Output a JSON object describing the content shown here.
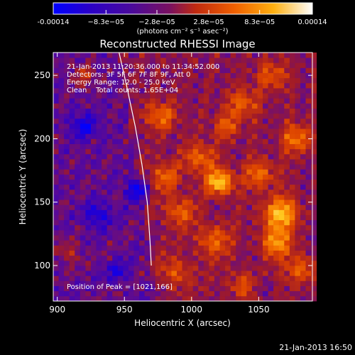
{
  "chart_data": {
    "type": "heatmap",
    "title": "Reconstructed RHESSI Image",
    "xlabel": "Heliocentric X (arcsec)",
    "ylabel": "Heliocentric Y (arcsec)",
    "xlim": [
      897,
      1090
    ],
    "ylim": [
      72,
      268
    ],
    "xticks": [
      900,
      950,
      1000,
      1050
    ],
    "yticks": [
      100,
      150,
      200,
      250
    ],
    "xtick_labels": [
      "900",
      "950",
      "1000",
      "1050"
    ],
    "ytick_labels": [
      "100",
      "150",
      "200",
      "250"
    ],
    "colorbar": {
      "range": [
        -0.00014,
        0.00014
      ],
      "tick_labels": [
        "-0.00014",
        "−8.3e−05",
        "−2.8e−05",
        "2.8e−05",
        "8.3e−05",
        "0.00014"
      ],
      "tick_values": [
        -0.00014,
        -8.3e-05,
        -2.8e-05,
        2.8e-05,
        8.3e-05,
        0.00014
      ],
      "units": "(photons cm⁻² s⁻¹ asec⁻²)",
      "colors": [
        "#0000ff",
        "#2a00c8",
        "#5a0a96",
        "#a01a28",
        "#dc4200",
        "#f87c00",
        "#ffc820",
        "#ffffff"
      ]
    },
    "annotations": [
      "21-Jan-2013 11:20:36.000 to 11:34:52.000",
      "Detectors: 3F 5F 6F 7F 8F 9F, Att 0",
      "Energy Range: 12.0 - 25.0 keV",
      "Clean    Total counts: 1.65E+04",
      "Position of Peak = [1021,166]"
    ],
    "peak": [
      1021,
      166
    ],
    "limb_curve": {
      "x": [
        946,
        952,
        958,
        963,
        967,
        969,
        970
      ],
      "y": [
        268,
        240,
        210,
        180,
        150,
        120,
        100
      ]
    },
    "blobs": [
      {
        "x": 1021,
        "y": 166,
        "amp": 1.0,
        "r": 7
      },
      {
        "x": 1066,
        "y": 141,
        "amp": 0.9,
        "r": 9
      },
      {
        "x": 1063,
        "y": 118,
        "amp": 0.7,
        "r": 8
      },
      {
        "x": 1079,
        "y": 200,
        "amp": 0.6,
        "r": 8
      },
      {
        "x": 1006,
        "y": 185,
        "amp": 0.55,
        "r": 8
      },
      {
        "x": 977,
        "y": 218,
        "amp": 0.55,
        "r": 8
      },
      {
        "x": 980,
        "y": 170,
        "amp": 0.5,
        "r": 8
      },
      {
        "x": 991,
        "y": 143,
        "amp": 0.5,
        "r": 8
      },
      {
        "x": 1038,
        "y": 228,
        "amp": 0.5,
        "r": 8
      },
      {
        "x": 1051,
        "y": 172,
        "amp": 0.55,
        "r": 8
      },
      {
        "x": 1016,
        "y": 120,
        "amp": 0.5,
        "r": 9
      },
      {
        "x": 1082,
        "y": 97,
        "amp": 0.5,
        "r": 8
      },
      {
        "x": 988,
        "y": 95,
        "amp": 0.45,
        "r": 8
      },
      {
        "x": 1040,
        "y": 84,
        "amp": 0.5,
        "r": 8
      },
      {
        "x": 1060,
        "y": 250,
        "amp": 0.45,
        "r": 8
      },
      {
        "x": 1026,
        "y": 210,
        "amp": 0.45,
        "r": 7
      },
      {
        "x": 920,
        "y": 250,
        "amp": 0.4,
        "r": 6
      },
      {
        "x": 909,
        "y": 110,
        "amp": 0.35,
        "r": 6
      },
      {
        "x": 960,
        "y": 160,
        "amp": -0.6,
        "r": 6
      },
      {
        "x": 920,
        "y": 210,
        "amp": -0.5,
        "r": 7
      },
      {
        "x": 930,
        "y": 140,
        "amp": -0.45,
        "r": 7
      },
      {
        "x": 945,
        "y": 95,
        "amp": -0.35,
        "r": 6
      },
      {
        "x": 1052,
        "y": 82,
        "amp": -0.3,
        "r": 6
      }
    ]
  },
  "footer_timestamp": "21-Jan-2013 16:50"
}
